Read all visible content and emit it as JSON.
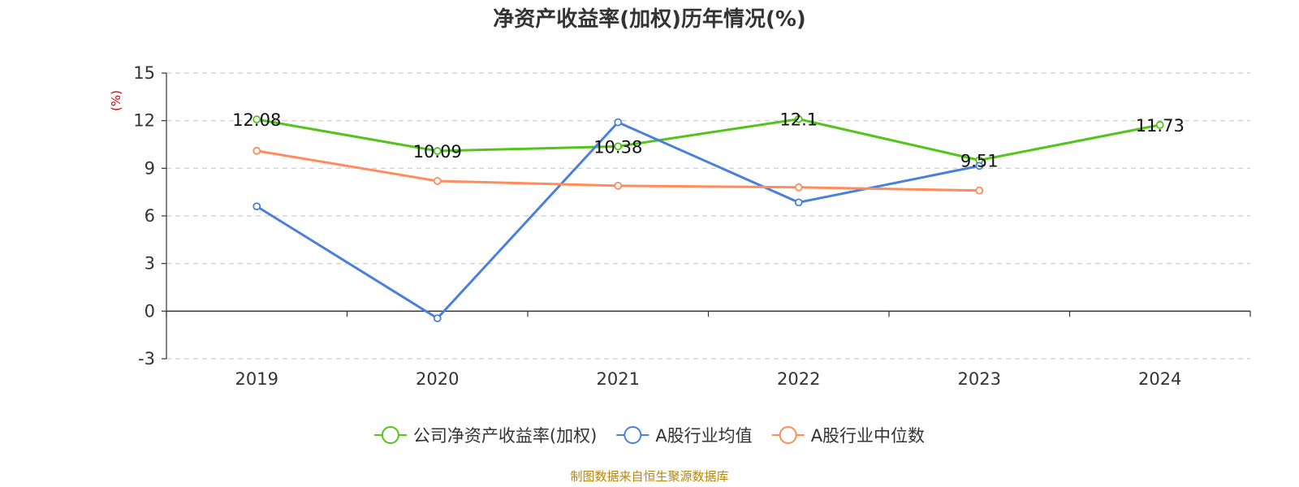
{
  "chart_data": {
    "type": "line",
    "title": "净资产收益率(加权)历年情况(%)",
    "ylabel": "(%)",
    "xlabel": "",
    "categories": [
      "2019",
      "2020",
      "2021",
      "2022",
      "2023",
      "2024"
    ],
    "ylim": [
      -3,
      15
    ],
    "yticks": [
      -3,
      0,
      3,
      6,
      9,
      12,
      15
    ],
    "grid": "horizontal dashed",
    "legend_position": "bottom",
    "series": [
      {
        "name": "公司净资产收益率(加权)",
        "color": "#52c41a",
        "values": [
          12.08,
          10.09,
          10.38,
          12.1,
          9.51,
          11.73
        ],
        "labels": [
          "12.08",
          "10.09",
          "10.38",
          "12.1",
          "9.51",
          "11.73"
        ]
      },
      {
        "name": "A股行业均值",
        "color": "#4a7fdc",
        "values": [
          6.6,
          -0.45,
          11.9,
          6.85,
          9.15,
          null
        ]
      },
      {
        "name": "A股行业中位数",
        "color": "#ff8c5a",
        "values": [
          10.1,
          8.2,
          7.9,
          7.8,
          7.6,
          null
        ]
      }
    ]
  },
  "source_note": "制图数据来自恒生聚源数据库"
}
